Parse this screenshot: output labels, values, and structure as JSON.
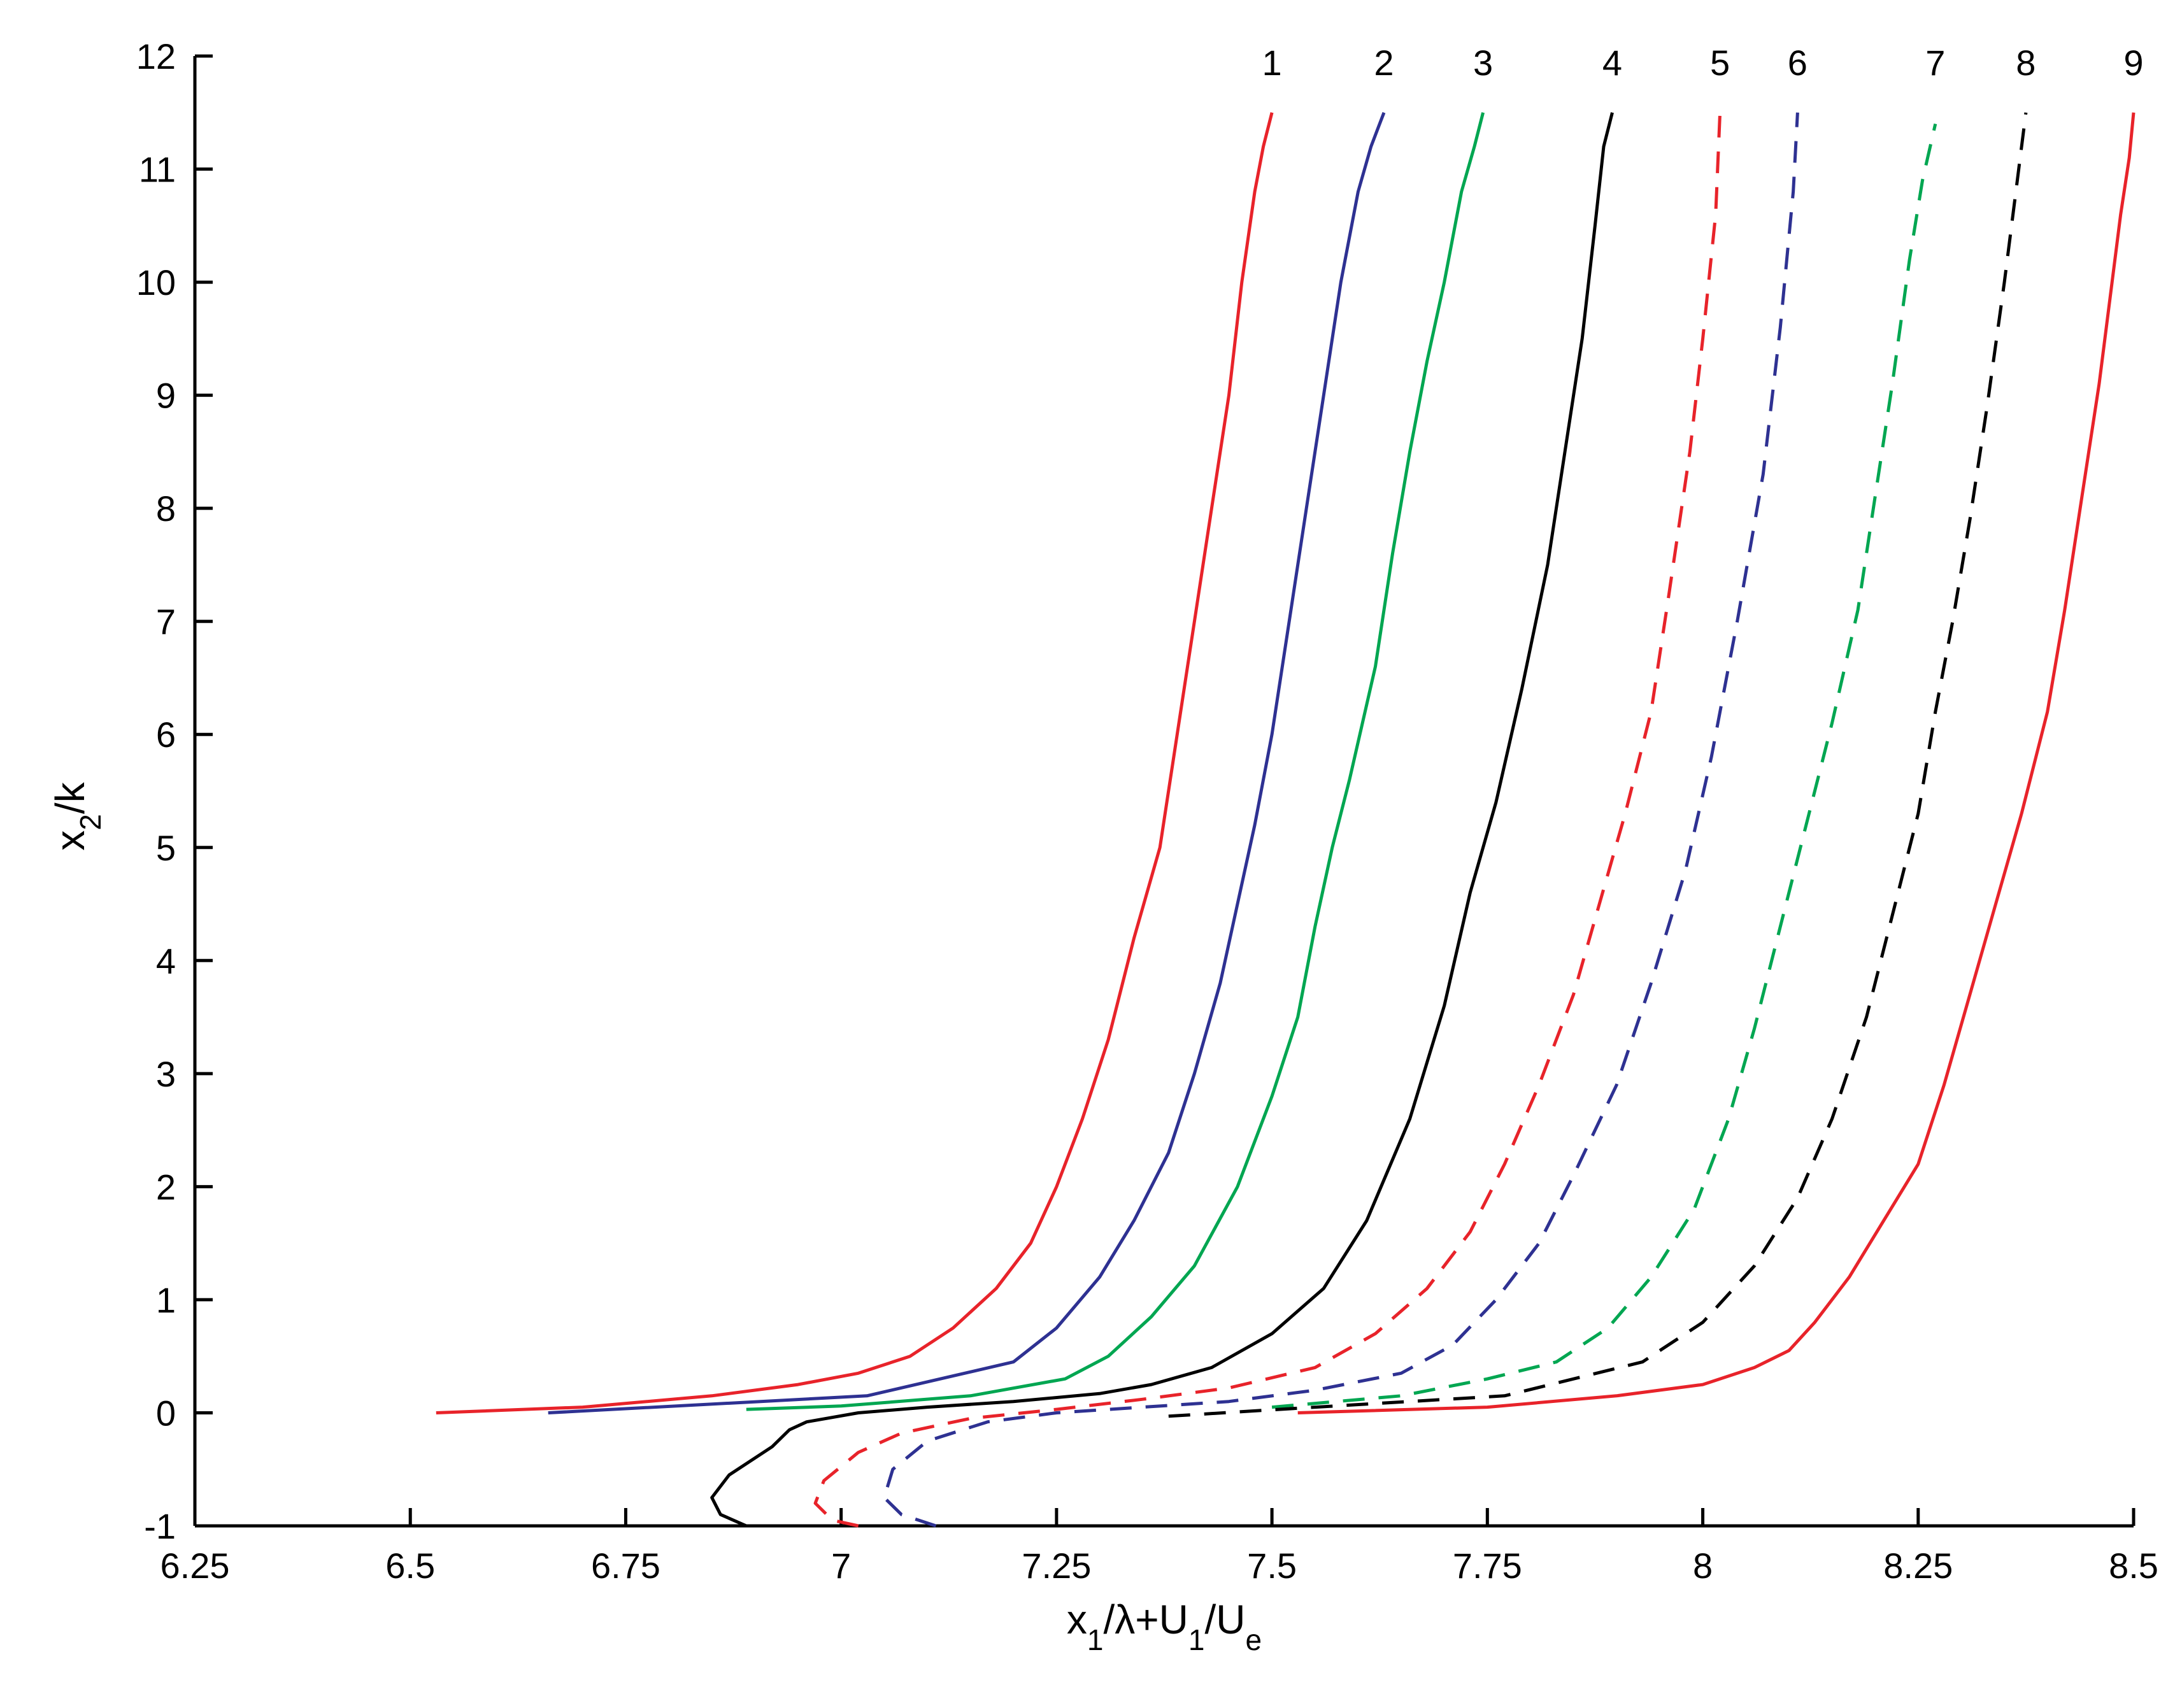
{
  "chart_data": {
    "type": "line",
    "title": "",
    "xlabel": {
      "parts": [
        "x",
        "1",
        "/λ+U",
        "1",
        "/U",
        "e"
      ]
    },
    "ylabel": {
      "parts": [
        "x",
        "2",
        "/k"
      ]
    },
    "xlim": [
      6.25,
      8.5
    ],
    "ylim": [
      -1,
      12
    ],
    "xticks": [
      "6.25",
      "6.5",
      "6.75",
      "7",
      "7.25",
      "7.5",
      "7.75",
      "8",
      "8.25",
      "8.5"
    ],
    "yticks": [
      "-1",
      "0",
      "1",
      "2",
      "3",
      "4",
      "5",
      "6",
      "7",
      "8",
      "9",
      "10",
      "11",
      "12"
    ],
    "grid": false,
    "series": [
      {
        "label": "1",
        "color": "#e8232a",
        "dash": false,
        "x": [
          6.53,
          6.7,
          6.85,
          6.95,
          7.02,
          7.08,
          7.13,
          7.18,
          7.22,
          7.25,
          7.28,
          7.31,
          7.34,
          7.37,
          7.39,
          7.41,
          7.43,
          7.45,
          7.465,
          7.48,
          7.49,
          7.5
        ],
        "y": [
          0,
          0.05,
          0.15,
          0.25,
          0.35,
          0.5,
          0.75,
          1.1,
          1.5,
          2.0,
          2.6,
          3.3,
          4.2,
          5.0,
          6.0,
          7.0,
          8.0,
          9.0,
          10.0,
          10.8,
          11.2,
          11.5
        ]
      },
      {
        "label": "2",
        "color": "#2e3192",
        "dash": false,
        "x": [
          6.66,
          7.03,
          7.2,
          7.25,
          7.3,
          7.34,
          7.38,
          7.41,
          7.44,
          7.46,
          7.48,
          7.5,
          7.52,
          7.54,
          7.56,
          7.58,
          7.6,
          7.615,
          7.625,
          7.63
        ],
        "y": [
          0,
          0.15,
          0.45,
          0.75,
          1.2,
          1.7,
          2.3,
          3.0,
          3.8,
          4.5,
          5.2,
          6.0,
          7.0,
          8.0,
          9.0,
          10.0,
          10.8,
          11.2,
          11.4,
          11.5
        ]
      },
      {
        "label": "3",
        "color": "#00a651",
        "dash": false,
        "x": [
          6.89,
          7.0,
          7.15,
          7.26,
          7.31,
          7.36,
          7.41,
          7.46,
          7.5,
          7.53,
          7.55,
          7.57,
          7.59,
          7.62,
          7.64,
          7.66,
          7.68,
          7.7,
          7.72,
          7.735,
          7.745
        ],
        "y": [
          0.03,
          0.06,
          0.15,
          0.3,
          0.5,
          0.85,
          1.3,
          2.0,
          2.8,
          3.5,
          4.3,
          5.0,
          5.6,
          6.6,
          7.6,
          8.5,
          9.3,
          10.0,
          10.8,
          11.2,
          11.5
        ]
      },
      {
        "label": "4",
        "color": "#000000",
        "dash": false,
        "x": [
          6.89,
          6.86,
          6.85,
          6.87,
          6.92,
          6.94,
          6.96,
          7.02,
          7.1,
          7.2,
          7.3,
          7.36,
          7.43,
          7.5,
          7.56,
          7.61,
          7.66,
          7.7,
          7.73,
          7.76,
          7.79,
          7.82,
          7.84,
          7.86,
          7.875,
          7.885,
          7.895
        ],
        "y": [
          -1,
          -0.9,
          -0.75,
          -0.55,
          -0.3,
          -0.15,
          -0.08,
          0,
          0.05,
          0.1,
          0.17,
          0.25,
          0.4,
          0.7,
          1.1,
          1.7,
          2.6,
          3.6,
          4.6,
          5.4,
          6.4,
          7.5,
          8.5,
          9.5,
          10.5,
          11.2,
          11.5
        ]
      },
      {
        "label": "5",
        "color": "#e8232a",
        "dash": true,
        "x": [
          7.02,
          6.99,
          6.97,
          6.98,
          7.02,
          7.07,
          7.15,
          7.25,
          7.35,
          7.45,
          7.55,
          7.62,
          7.68,
          7.73,
          7.77,
          7.81,
          7.85,
          7.88,
          7.91,
          7.94,
          7.96,
          7.985,
          8.0,
          8.015,
          8.02
        ],
        "y": [
          -1,
          -0.95,
          -0.8,
          -0.6,
          -0.35,
          -0.18,
          -0.05,
          0.03,
          0.12,
          0.22,
          0.4,
          0.7,
          1.1,
          1.6,
          2.2,
          2.9,
          3.7,
          4.5,
          5.3,
          6.2,
          7.2,
          8.5,
          9.5,
          10.6,
          11.5
        ]
      },
      {
        "label": "6",
        "color": "#2e3192",
        "dash": true,
        "x": [
          7.11,
          7.07,
          7.05,
          7.06,
          7.1,
          7.17,
          7.25,
          7.35,
          7.45,
          7.55,
          7.65,
          7.71,
          7.76,
          7.81,
          7.85,
          7.9,
          7.94,
          7.98,
          8.01,
          8.04,
          8.07,
          8.09,
          8.105,
          8.11
        ],
        "y": [
          -1,
          -0.9,
          -0.75,
          -0.5,
          -0.25,
          -0.08,
          0,
          0.05,
          0.1,
          0.2,
          0.35,
          0.6,
          1.0,
          1.5,
          2.1,
          2.9,
          3.8,
          4.8,
          5.8,
          7.0,
          8.3,
          9.6,
          10.8,
          11.5
        ]
      },
      {
        "label": "7",
        "color": "#00a651",
        "dash": true,
        "x": [
          7.5,
          7.65,
          7.75,
          7.83,
          7.89,
          7.94,
          7.99,
          8.03,
          8.06,
          8.09,
          8.12,
          8.15,
          8.18,
          8.2,
          8.22,
          8.24,
          8.255,
          8.27
        ],
        "y": [
          0.05,
          0.15,
          0.3,
          0.45,
          0.75,
          1.2,
          1.8,
          2.6,
          3.4,
          4.3,
          5.2,
          6.1,
          7.1,
          8.1,
          9.1,
          10.2,
          10.9,
          11.4
        ]
      },
      {
        "label": "8",
        "color": "#000000",
        "dash": true,
        "x": [
          7.38,
          7.55,
          7.77,
          7.93,
          8.0,
          8.06,
          8.11,
          8.15,
          8.19,
          8.22,
          8.25,
          8.27,
          8.29,
          8.31,
          8.33,
          8.35,
          8.365,
          8.375
        ],
        "y": [
          -0.03,
          0.05,
          0.15,
          0.45,
          0.8,
          1.3,
          1.9,
          2.6,
          3.5,
          4.4,
          5.3,
          6.2,
          7.0,
          7.9,
          8.9,
          10.0,
          10.9,
          11.5
        ]
      },
      {
        "label": "9",
        "color": "#e8232a",
        "dash": false,
        "x": [
          7.53,
          7.75,
          7.9,
          8.0,
          8.06,
          8.1,
          8.13,
          8.17,
          8.21,
          8.25,
          8.28,
          8.31,
          8.34,
          8.37,
          8.4,
          8.42,
          8.44,
          8.46,
          8.475,
          8.485,
          8.495,
          8.5
        ],
        "y": [
          0,
          0.05,
          0.15,
          0.25,
          0.4,
          0.55,
          0.8,
          1.2,
          1.7,
          2.2,
          2.9,
          3.7,
          4.5,
          5.3,
          6.2,
          7.1,
          8.1,
          9.1,
          10.0,
          10.6,
          11.1,
          11.5
        ]
      }
    ]
  }
}
